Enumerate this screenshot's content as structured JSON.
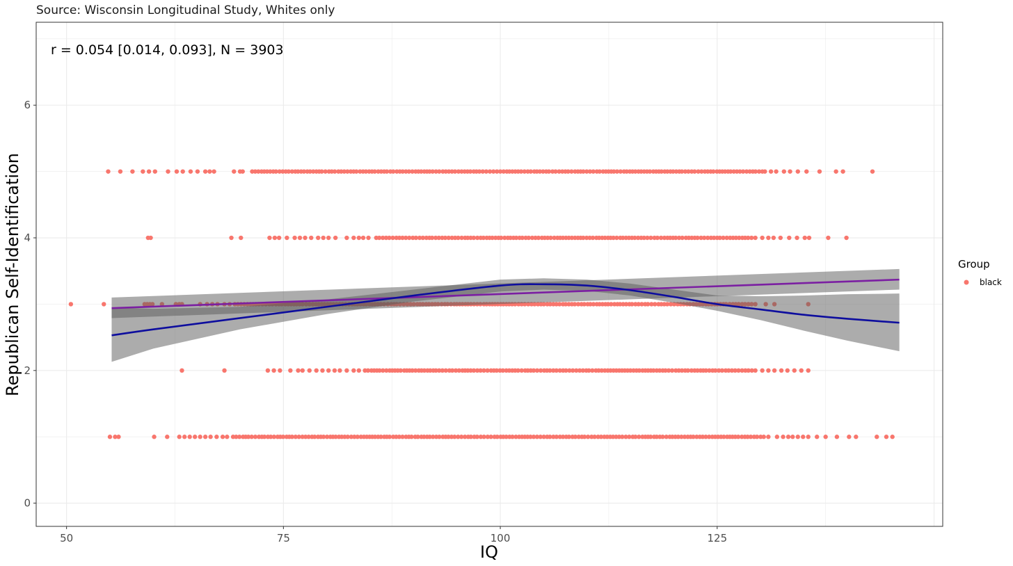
{
  "chart_data": {
    "type": "scatter",
    "subtitle": "Source: Wisconsin Longitudinal Study, Whites only",
    "annotation": "r =  0.054 [0.014, 0.093], N = 3903",
    "xlabel": "IQ",
    "ylabel": "Republican Self-Identification",
    "xlim": [
      46.5,
      151
    ],
    "ylim": [
      -0.35,
      7.25
    ],
    "x_ticks": [
      50,
      75,
      100,
      125
    ],
    "y_ticks": [
      0,
      2,
      4,
      6
    ],
    "grid": true,
    "legend": {
      "title": "Group",
      "position": "right",
      "entries": [
        {
          "label": "black",
          "color": "#F8766D"
        }
      ]
    },
    "point_color": "#F8766D",
    "points_by_level": [
      {
        "y": 5,
        "x_range": [
          54.8,
          145
        ],
        "isolated": [
          54.8,
          56.2,
          57.6,
          58.8,
          59.5,
          60.2,
          61.7,
          62.7,
          63.4,
          64.3,
          65.1,
          66.0,
          66.5,
          67.0,
          69.3,
          70.0,
          70.3,
          71.4,
          130.5,
          131.2,
          131.8,
          132.7,
          133.4,
          134.3,
          135.3,
          136.8,
          138.7,
          139.5,
          142.9
        ]
      },
      {
        "y": 4,
        "x_range": [
          59.4,
          139.9
        ],
        "isolated": [
          59.4,
          59.7,
          69.0,
          70.1,
          73.4,
          74.0,
          74.5,
          75.4,
          76.3,
          76.9,
          77.5,
          78.2,
          79.0,
          79.6,
          80.2,
          81.0,
          82.3,
          83.1,
          83.7,
          84.2,
          84.8,
          85.7,
          129.4,
          130.2,
          130.9,
          131.5,
          132.3,
          133.3,
          134.2,
          135.1,
          135.6,
          137.8,
          139.9
        ]
      },
      {
        "y": 3,
        "x_range": [
          50.5,
          135.5
        ],
        "isolated": [
          50.5,
          54.3,
          59.0,
          59.3,
          59.6,
          59.9,
          61.0,
          62.6,
          63.0,
          63.3,
          65.4,
          66.2,
          66.8,
          67.4,
          68.2,
          68.8,
          69.4,
          129.4,
          130.6,
          131.6,
          135.5
        ]
      },
      {
        "y": 2,
        "x_range": [
          63.3,
          135.5
        ],
        "isolated": [
          63.3,
          68.2,
          73.2,
          73.9,
          74.6,
          75.8,
          76.7,
          77.2,
          78.0,
          78.8,
          79.5,
          80.2,
          80.9,
          81.5,
          82.3,
          83.1,
          83.7,
          84.4,
          129.4,
          130.2,
          130.9,
          131.6,
          132.4,
          133.1,
          133.9,
          134.7,
          135.5
        ]
      },
      {
        "y": 1,
        "x_range": [
          55.0,
          146
        ],
        "isolated": [
          55.0,
          55.6,
          56.0,
          60.1,
          61.6,
          63.0,
          63.6,
          64.2,
          64.8,
          65.4,
          66.0,
          66.6,
          67.3,
          68.0,
          68.5,
          69.2,
          130.9,
          131.9,
          132.6,
          133.2,
          133.7,
          134.3,
          134.9,
          135.5,
          136.5,
          137.5,
          138.8,
          140.2,
          141.0,
          143.4,
          144.5,
          145.2
        ]
      }
    ],
    "series": [
      {
        "fit": "linear",
        "line_color": "#7B1FA2",
        "x": [
          55.2,
          146
        ],
        "y": [
          2.94,
          3.37
        ],
        "band_lower": [
          2.79,
          3.22
        ],
        "band_upper": [
          3.1,
          3.53
        ]
      },
      {
        "fit": "loess",
        "line_color": "#0D0D9E",
        "x": [
          55.2,
          60,
          70,
          80,
          90,
          100,
          105,
          110,
          115,
          120,
          125,
          130,
          135,
          140,
          146
        ],
        "y": [
          2.53,
          2.62,
          2.79,
          2.96,
          3.13,
          3.28,
          3.3,
          3.28,
          3.21,
          3.11,
          3.0,
          2.92,
          2.84,
          2.78,
          2.72
        ],
        "band_lower": [
          2.13,
          2.33,
          2.62,
          2.85,
          3.04,
          3.19,
          3.22,
          3.2,
          3.13,
          3.02,
          2.9,
          2.76,
          2.6,
          2.45,
          2.29
        ],
        "band_upper": [
          2.95,
          2.93,
          2.96,
          3.07,
          3.22,
          3.37,
          3.39,
          3.37,
          3.31,
          3.22,
          3.13,
          3.12,
          3.13,
          3.15,
          3.16
        ]
      }
    ]
  }
}
